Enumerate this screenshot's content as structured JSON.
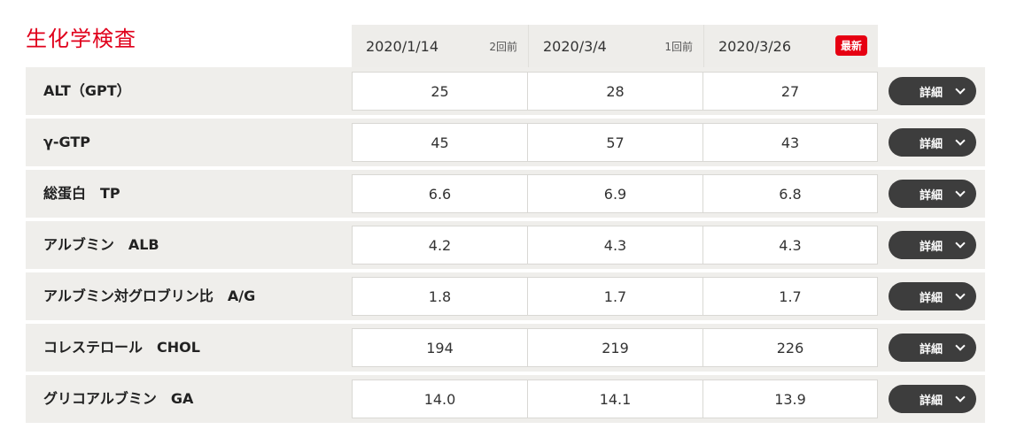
{
  "section_title": "生化学検査",
  "header": {
    "dates": [
      {
        "date": "2020/1/14",
        "tag": "2回前"
      },
      {
        "date": "2020/3/4",
        "tag": "1回前"
      },
      {
        "date": "2020/3/26",
        "badge": "最新"
      }
    ]
  },
  "detail_label": "詳細",
  "rows": [
    {
      "label": "ALT（GPT）",
      "values": [
        "25",
        "28",
        "27"
      ]
    },
    {
      "label": "γ-GTP",
      "values": [
        "45",
        "57",
        "43"
      ]
    },
    {
      "label": "総蛋白　TP",
      "values": [
        "6.6",
        "6.9",
        "6.8"
      ]
    },
    {
      "label": "アルブミン　ALB",
      "values": [
        "4.2",
        "4.3",
        "4.3"
      ]
    },
    {
      "label": "アルブミン対グロブリン比　A/G",
      "values": [
        "1.8",
        "1.7",
        "1.7"
      ]
    },
    {
      "label": "コレステロール　CHOL",
      "values": [
        "194",
        "219",
        "226"
      ]
    },
    {
      "label": "グリコアルブミン　GA",
      "values": [
        "14.0",
        "14.1",
        "13.9"
      ]
    }
  ]
}
